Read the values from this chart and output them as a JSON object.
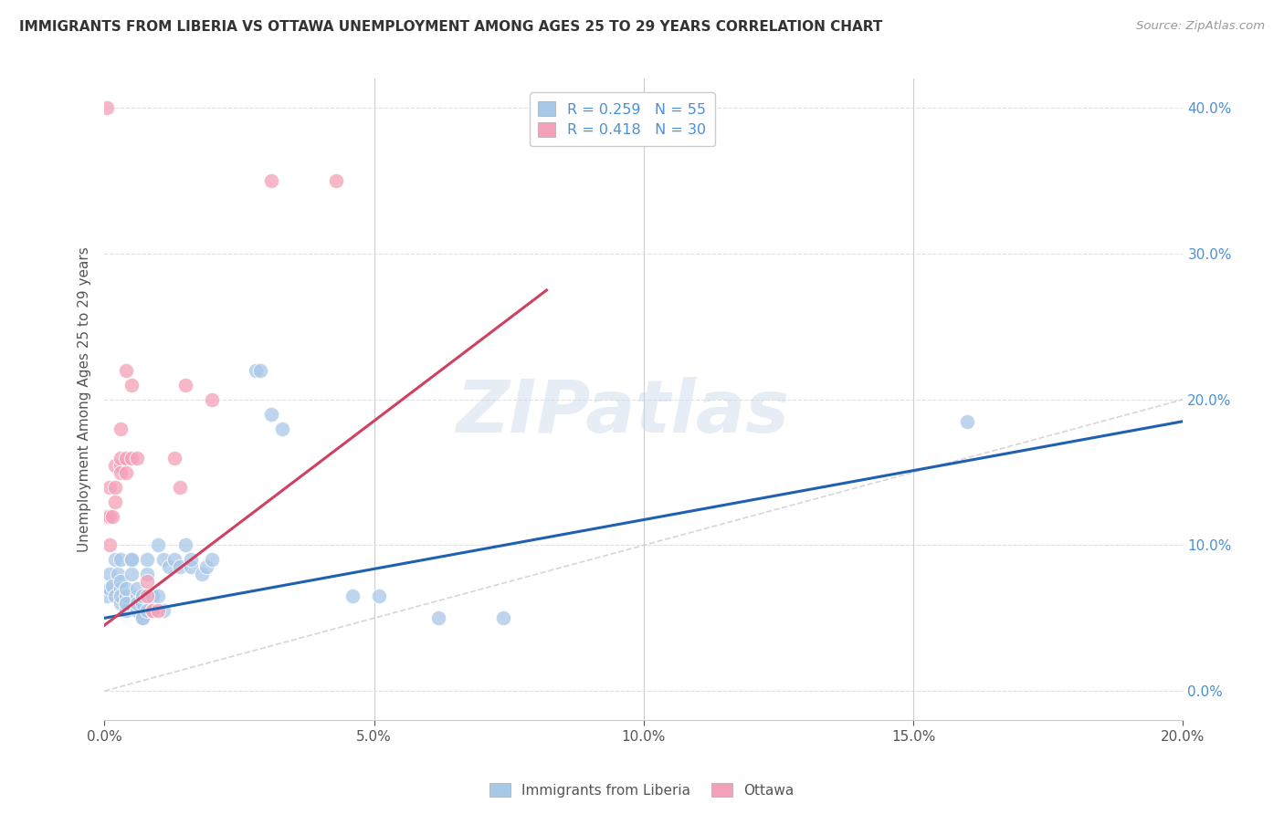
{
  "title": "IMMIGRANTS FROM LIBERIA VS OTTAWA UNEMPLOYMENT AMONG AGES 25 TO 29 YEARS CORRELATION CHART",
  "source": "Source: ZipAtlas.com",
  "ylabel": "Unemployment Among Ages 25 to 29 years",
  "legend_entries": [
    "R = 0.259   N = 55",
    "R = 0.418   N = 30"
  ],
  "legend_labels": [
    "Immigrants from Liberia",
    "Ottawa"
  ],
  "watermark": "ZIPatlas",
  "xlim": [
    0.0,
    0.2
  ],
  "ylim": [
    -0.02,
    0.42
  ],
  "xticks": [
    0.0,
    0.05,
    0.1,
    0.15,
    0.2
  ],
  "yticks": [
    0.0,
    0.1,
    0.2,
    0.3,
    0.4
  ],
  "blue_scatter": [
    [
      0.0005,
      0.065
    ],
    [
      0.001,
      0.07
    ],
    [
      0.001,
      0.08
    ],
    [
      0.0015,
      0.072
    ],
    [
      0.002,
      0.09
    ],
    [
      0.002,
      0.065
    ],
    [
      0.0025,
      0.08
    ],
    [
      0.003,
      0.06
    ],
    [
      0.003,
      0.07
    ],
    [
      0.003,
      0.065
    ],
    [
      0.003,
      0.075
    ],
    [
      0.003,
      0.09
    ],
    [
      0.004,
      0.06
    ],
    [
      0.004,
      0.065
    ],
    [
      0.004,
      0.07
    ],
    [
      0.004,
      0.055
    ],
    [
      0.004,
      0.06
    ],
    [
      0.005,
      0.09
    ],
    [
      0.005,
      0.08
    ],
    [
      0.005,
      0.09
    ],
    [
      0.006,
      0.065
    ],
    [
      0.006,
      0.07
    ],
    [
      0.006,
      0.055
    ],
    [
      0.006,
      0.06
    ],
    [
      0.007,
      0.05
    ],
    [
      0.007,
      0.06
    ],
    [
      0.007,
      0.05
    ],
    [
      0.007,
      0.065
    ],
    [
      0.008,
      0.08
    ],
    [
      0.008,
      0.09
    ],
    [
      0.008,
      0.055
    ],
    [
      0.009,
      0.065
    ],
    [
      0.009,
      0.065
    ],
    [
      0.01,
      0.1
    ],
    [
      0.01,
      0.065
    ],
    [
      0.011,
      0.09
    ],
    [
      0.011,
      0.055
    ],
    [
      0.012,
      0.085
    ],
    [
      0.013,
      0.09
    ],
    [
      0.014,
      0.085
    ],
    [
      0.015,
      0.1
    ],
    [
      0.016,
      0.085
    ],
    [
      0.016,
      0.09
    ],
    [
      0.018,
      0.08
    ],
    [
      0.019,
      0.085
    ],
    [
      0.02,
      0.09
    ],
    [
      0.028,
      0.22
    ],
    [
      0.029,
      0.22
    ],
    [
      0.031,
      0.19
    ],
    [
      0.033,
      0.18
    ],
    [
      0.046,
      0.065
    ],
    [
      0.051,
      0.065
    ],
    [
      0.062,
      0.05
    ],
    [
      0.074,
      0.05
    ],
    [
      0.16,
      0.185
    ]
  ],
  "pink_scatter": [
    [
      0.0005,
      0.12
    ],
    [
      0.001,
      0.14
    ],
    [
      0.001,
      0.1
    ],
    [
      0.001,
      0.12
    ],
    [
      0.0015,
      0.12
    ],
    [
      0.002,
      0.14
    ],
    [
      0.002,
      0.155
    ],
    [
      0.002,
      0.13
    ],
    [
      0.003,
      0.155
    ],
    [
      0.003,
      0.16
    ],
    [
      0.003,
      0.18
    ],
    [
      0.003,
      0.15
    ],
    [
      0.004,
      0.15
    ],
    [
      0.004,
      0.16
    ],
    [
      0.004,
      0.22
    ],
    [
      0.005,
      0.16
    ],
    [
      0.005,
      0.21
    ],
    [
      0.006,
      0.16
    ],
    [
      0.008,
      0.065
    ],
    [
      0.008,
      0.075
    ],
    [
      0.009,
      0.055
    ],
    [
      0.009,
      0.055
    ],
    [
      0.01,
      0.055
    ],
    [
      0.013,
      0.16
    ],
    [
      0.014,
      0.14
    ],
    [
      0.015,
      0.21
    ],
    [
      0.02,
      0.2
    ],
    [
      0.031,
      0.35
    ],
    [
      0.0005,
      0.4
    ],
    [
      0.043,
      0.35
    ]
  ],
  "blue_line": [
    [
      0.0,
      0.05
    ],
    [
      0.2,
      0.185
    ]
  ],
  "pink_line": [
    [
      0.0,
      0.045
    ],
    [
      0.082,
      0.275
    ]
  ],
  "diag_line": [
    [
      0.0,
      0.0
    ],
    [
      0.2,
      0.2
    ]
  ],
  "scatter_color_blue": "#a8c8e8",
  "scatter_color_pink": "#f4a0b8",
  "line_color_blue": "#2060b0",
  "line_color_pink": "#d04060",
  "diag_color": "#cccccc",
  "bg_color": "#ffffff",
  "grid_color": "#dddddd"
}
